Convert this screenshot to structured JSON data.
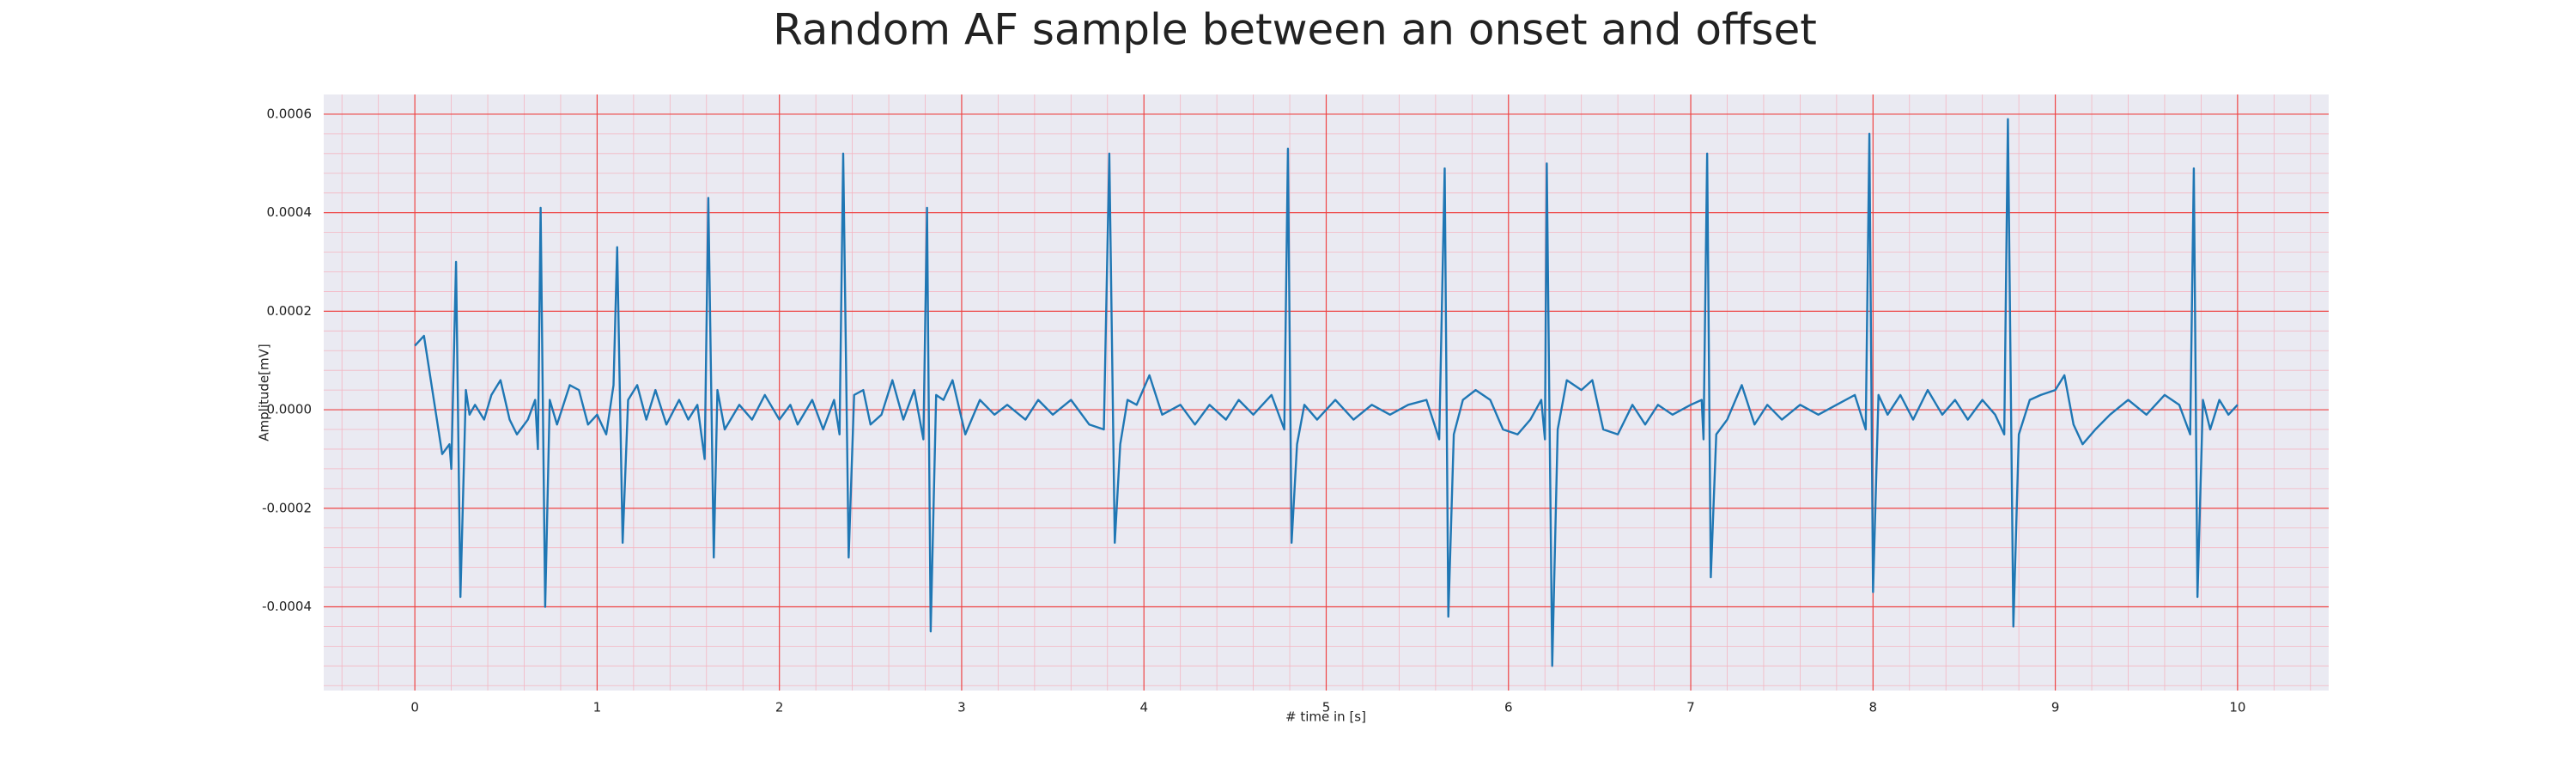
{
  "chart_data": {
    "type": "line",
    "title": "Random AF sample between an onset and offset",
    "xlabel": "# time in [s]",
    "ylabel": "Amplitude[mV]",
    "color": "#1f77b4",
    "x": [
      0.0,
      0.05,
      0.1,
      0.15,
      0.19,
      0.2,
      0.226,
      0.25,
      0.28,
      0.3,
      0.33,
      0.38,
      0.42,
      0.47,
      0.52,
      0.56,
      0.62,
      0.66,
      0.675,
      0.69,
      0.715,
      0.74,
      0.78,
      0.85,
      0.9,
      0.95,
      1.0,
      1.05,
      1.09,
      1.11,
      1.14,
      1.17,
      1.22,
      1.27,
      1.32,
      1.38,
      1.45,
      1.5,
      1.55,
      1.59,
      1.61,
      1.64,
      1.66,
      1.7,
      1.78,
      1.85,
      1.92,
      2.0,
      2.06,
      2.1,
      2.18,
      2.24,
      2.3,
      2.33,
      2.35,
      2.38,
      2.41,
      2.46,
      2.5,
      2.56,
      2.62,
      2.68,
      2.74,
      2.79,
      2.81,
      2.83,
      2.86,
      2.9,
      2.95,
      3.02,
      3.1,
      3.18,
      3.25,
      3.35,
      3.42,
      3.5,
      3.6,
      3.7,
      3.78,
      3.81,
      3.84,
      3.87,
      3.91,
      3.96,
      4.03,
      4.1,
      4.2,
      4.28,
      4.36,
      4.45,
      4.52,
      4.6,
      4.7,
      4.77,
      4.79,
      4.81,
      4.84,
      4.88,
      4.95,
      5.05,
      5.15,
      5.25,
      5.35,
      5.45,
      5.55,
      5.62,
      5.65,
      5.67,
      5.7,
      5.75,
      5.82,
      5.9,
      5.97,
      6.05,
      6.12,
      6.18,
      6.2,
      6.21,
      6.24,
      6.27,
      6.32,
      6.4,
      6.46,
      6.52,
      6.6,
      6.68,
      6.75,
      6.82,
      6.9,
      7.0,
      7.06,
      7.07,
      7.09,
      7.11,
      7.14,
      7.2,
      7.28,
      7.35,
      7.42,
      7.5,
      7.6,
      7.7,
      7.8,
      7.9,
      7.96,
      7.98,
      8.0,
      8.03,
      8.08,
      8.15,
      8.22,
      8.3,
      8.38,
      8.45,
      8.52,
      8.6,
      8.67,
      8.72,
      8.74,
      8.77,
      8.8,
      8.86,
      8.92,
      9.0,
      9.05,
      9.1,
      9.15,
      9.22,
      9.3,
      9.4,
      9.5,
      9.6,
      9.68,
      9.74,
      9.76,
      9.78,
      9.81,
      9.85,
      9.9,
      9.95,
      10.0
    ],
    "values": [
      0.00013,
      0.00015,
      3e-05,
      -9e-05,
      -7e-05,
      -0.00012,
      0.0003,
      -0.00038,
      4e-05,
      -1e-05,
      1e-05,
      -2e-05,
      3e-05,
      6e-05,
      -2e-05,
      -5e-05,
      -2e-05,
      2e-05,
      -8e-05,
      0.00041,
      -0.0004,
      2e-05,
      -3e-05,
      5e-05,
      4e-05,
      -3e-05,
      -1e-05,
      -5e-05,
      5e-05,
      0.00033,
      -0.00027,
      2e-05,
      5e-05,
      -2e-05,
      4e-05,
      -3e-05,
      2e-05,
      -2e-05,
      1e-05,
      -0.0001,
      0.00043,
      -0.0003,
      4e-05,
      -4e-05,
      1e-05,
      -2e-05,
      3e-05,
      -2e-05,
      1e-05,
      -3e-05,
      2e-05,
      -4e-05,
      2e-05,
      -5e-05,
      0.00052,
      -0.0003,
      3e-05,
      4e-05,
      -3e-05,
      -1e-05,
      6e-05,
      -2e-05,
      4e-05,
      -6e-05,
      0.00041,
      -0.00045,
      3e-05,
      2e-05,
      6e-05,
      -5e-05,
      2e-05,
      -1e-05,
      1e-05,
      -2e-05,
      2e-05,
      -1e-05,
      2e-05,
      -3e-05,
      -4e-05,
      0.00052,
      -0.00027,
      -7e-05,
      2e-05,
      1e-05,
      7e-05,
      -1e-05,
      1e-05,
      -3e-05,
      1e-05,
      -2e-05,
      2e-05,
      -1e-05,
      3e-05,
      -4e-05,
      0.00053,
      -0.00027,
      -7e-05,
      1e-05,
      -2e-05,
      2e-05,
      -2e-05,
      1e-05,
      -1e-05,
      1e-05,
      2e-05,
      -6e-05,
      0.00049,
      -0.00042,
      -5e-05,
      2e-05,
      4e-05,
      2e-05,
      -4e-05,
      -5e-05,
      -2e-05,
      2e-05,
      -6e-05,
      0.0005,
      -0.00052,
      -4e-05,
      6e-05,
      4e-05,
      6e-05,
      -4e-05,
      -5e-05,
      1e-05,
      -3e-05,
      1e-05,
      -1e-05,
      1e-05,
      2e-05,
      -6e-05,
      0.00052,
      -0.00034,
      -5e-05,
      -2e-05,
      5e-05,
      -3e-05,
      1e-05,
      -2e-05,
      1e-05,
      -1e-05,
      1e-05,
      3e-05,
      -4e-05,
      0.00056,
      -0.00037,
      3e-05,
      -1e-05,
      3e-05,
      -2e-05,
      4e-05,
      -1e-05,
      2e-05,
      -2e-05,
      2e-05,
      -1e-05,
      -5e-05,
      0.00059,
      -0.00044,
      -5e-05,
      2e-05,
      3e-05,
      4e-05,
      7e-05,
      -3e-05,
      -7e-05,
      -4e-05,
      -1e-05,
      2e-05,
      -1e-05,
      3e-05,
      1e-05,
      -5e-05,
      0.00049,
      -0.00038,
      2e-05,
      -4e-05,
      2e-05,
      -1e-05,
      1e-05
    ],
    "xlim": [
      -0.5,
      10.5
    ],
    "xticks": [
      0,
      1,
      2,
      3,
      4,
      5,
      6,
      7,
      8,
      9,
      10
    ],
    "ylim": [
      -0.00057,
      0.00064
    ],
    "yticks": [
      -0.0004,
      -0.0002,
      {
        "value": 0,
        "label": "0.0000"
      },
      0.0002,
      0.0004,
      0.0006
    ],
    "grid": true,
    "minor_grid": true
  }
}
